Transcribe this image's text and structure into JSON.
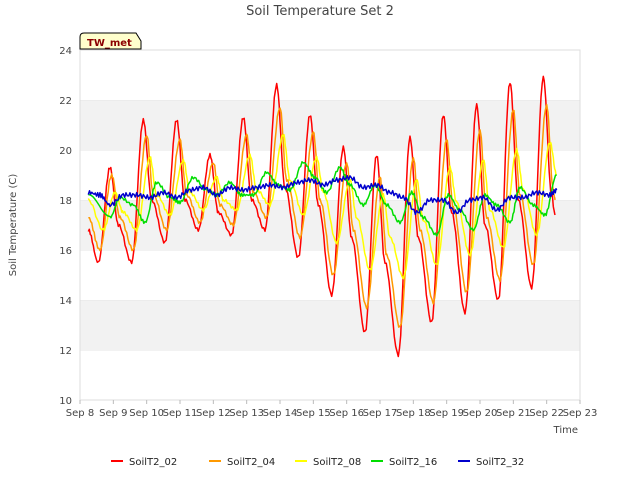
{
  "chart_data": {
    "type": "line",
    "title": "Soil Temperature Set 2",
    "xlabel": "Time",
    "ylabel": "Soil Temperature (C)",
    "ylim": [
      10,
      24
    ],
    "yticks": [
      10,
      12,
      14,
      16,
      18,
      20,
      22,
      24
    ],
    "xlim": [
      8,
      23
    ],
    "xtick_labels": [
      "Sep 8",
      "Sep 9",
      "Sep 10",
      "Sep 11",
      "Sep 12",
      "Sep 13",
      "Sep 14",
      "Sep 15",
      "Sep 16",
      "Sep 17",
      "Sep 18",
      "Sep 19",
      "Sep 20",
      "Sep 21",
      "Sep 22",
      "Sep 23"
    ],
    "grid": "horizontal bands",
    "legend_position": "bottom",
    "badge": "TW_met",
    "series": [
      {
        "name": "SoilT2_02",
        "color": "#ff0000",
        "x": [
          8.25,
          8.55,
          8.9,
          9.15,
          9.55,
          9.9,
          10.15,
          10.55,
          10.9,
          11.15,
          11.55,
          11.9,
          12.15,
          12.55,
          12.9,
          13.15,
          13.55,
          13.9,
          14.15,
          14.55,
          14.9,
          15.15,
          15.55,
          15.9,
          16.15,
          16.55,
          16.9,
          17.15,
          17.55,
          17.9,
          18.15,
          18.55,
          18.9,
          19.15,
          19.55,
          19.9,
          20.15,
          20.55,
          20.9,
          21.15,
          21.55,
          21.9,
          22.15,
          22.25
        ],
        "y": [
          16.8,
          15.5,
          19.3,
          17.0,
          15.5,
          21.2,
          18.0,
          16.3,
          21.2,
          18.0,
          16.8,
          19.8,
          17.5,
          16.6,
          21.3,
          18.0,
          16.8,
          22.6,
          18.5,
          15.7,
          21.4,
          17.8,
          14.2,
          20.1,
          16.5,
          12.7,
          19.8,
          15.5,
          11.8,
          20.5,
          16.5,
          13.1,
          21.4,
          17.5,
          13.5,
          21.8,
          17.0,
          14.0,
          22.7,
          18.0,
          14.5,
          22.9,
          18.2,
          17.4
        ]
      },
      {
        "name": "SoilT2_04",
        "color": "#ff9900",
        "x": [
          8.25,
          8.6,
          8.95,
          9.2,
          9.6,
          10.0,
          10.2,
          10.6,
          11.0,
          11.2,
          11.6,
          12.0,
          12.2,
          12.6,
          13.0,
          13.2,
          13.6,
          14.0,
          14.2,
          14.6,
          15.0,
          15.2,
          15.6,
          16.0,
          16.2,
          16.6,
          17.0,
          17.2,
          17.6,
          18.0,
          18.2,
          18.6,
          19.0,
          19.2,
          19.6,
          20.0,
          20.2,
          20.6,
          21.0,
          21.2,
          21.6,
          22.0,
          22.2,
          22.25
        ],
        "y": [
          17.3,
          16.0,
          19.0,
          17.3,
          16.0,
          20.6,
          18.2,
          16.8,
          20.4,
          18.2,
          17.1,
          19.5,
          17.8,
          17.0,
          20.6,
          18.3,
          17.3,
          21.7,
          18.8,
          16.5,
          20.7,
          18.0,
          15.0,
          19.5,
          16.8,
          13.7,
          18.9,
          15.8,
          12.9,
          19.7,
          16.8,
          13.9,
          20.4,
          17.7,
          14.3,
          20.8,
          17.3,
          14.8,
          21.6,
          18.2,
          15.4,
          21.8,
          18.4,
          18.0
        ]
      },
      {
        "name": "SoilT2_08",
        "color": "#ffff00",
        "x": [
          8.25,
          8.7,
          9.05,
          9.3,
          9.7,
          10.1,
          10.3,
          10.7,
          11.1,
          11.3,
          11.7,
          12.1,
          12.3,
          12.7,
          13.1,
          13.3,
          13.7,
          14.1,
          14.3,
          14.7,
          15.1,
          15.3,
          15.7,
          16.1,
          16.3,
          16.7,
          17.1,
          17.3,
          17.7,
          18.1,
          18.3,
          18.7,
          19.1,
          19.3,
          19.7,
          20.1,
          20.3,
          20.7,
          21.1,
          21.3,
          21.7,
          22.1,
          22.3
        ],
        "y": [
          18.0,
          16.8,
          18.3,
          17.5,
          16.8,
          19.7,
          18.2,
          17.4,
          19.6,
          18.3,
          17.6,
          18.9,
          18.0,
          17.6,
          19.8,
          18.4,
          17.8,
          20.6,
          18.8,
          17.4,
          19.7,
          18.3,
          16.3,
          18.8,
          17.3,
          15.2,
          18.2,
          16.5,
          14.9,
          18.8,
          17.2,
          15.4,
          19.3,
          17.9,
          15.8,
          19.6,
          17.6,
          16.1,
          20.0,
          18.4,
          16.6,
          20.3,
          19.0
        ]
      },
      {
        "name": "SoilT2_16",
        "color": "#00dd00",
        "x": [
          8.25,
          8.9,
          9.2,
          9.6,
          9.95,
          10.3,
          10.7,
          11.0,
          11.4,
          11.8,
          12.1,
          12.5,
          12.85,
          13.2,
          13.6,
          13.95,
          14.3,
          14.7,
          15.05,
          15.4,
          15.8,
          16.1,
          16.5,
          16.85,
          17.2,
          17.6,
          17.95,
          18.3,
          18.7,
          19.05,
          19.4,
          19.8,
          20.15,
          20.5,
          20.9,
          21.2,
          21.6,
          21.95,
          22.3
        ],
        "y": [
          18.2,
          17.3,
          18.1,
          17.8,
          17.1,
          18.7,
          18.1,
          17.9,
          18.9,
          18.4,
          18.2,
          18.7,
          18.2,
          18.2,
          19.1,
          18.6,
          18.4,
          19.5,
          18.9,
          18.3,
          19.3,
          18.6,
          17.8,
          18.6,
          17.8,
          17.1,
          18.3,
          17.3,
          16.6,
          18.2,
          17.6,
          16.8,
          18.2,
          17.8,
          17.1,
          18.5,
          17.8,
          17.4,
          19.0
        ]
      },
      {
        "name": "SoilT2_32",
        "color": "#0000cc",
        "x": [
          8.25,
          8.6,
          8.9,
          9.3,
          9.7,
          10.1,
          10.5,
          10.9,
          11.3,
          11.7,
          12.1,
          12.5,
          12.9,
          13.3,
          13.7,
          14.1,
          14.5,
          14.9,
          15.3,
          15.7,
          16.1,
          16.5,
          16.9,
          17.3,
          17.7,
          18.1,
          18.5,
          18.9,
          19.3,
          19.7,
          20.1,
          20.5,
          20.9,
          21.3,
          21.7,
          22.1,
          22.3
        ],
        "y": [
          18.3,
          18.2,
          17.8,
          18.2,
          18.2,
          18.1,
          18.3,
          18.1,
          18.4,
          18.5,
          18.2,
          18.5,
          18.4,
          18.5,
          18.6,
          18.5,
          18.7,
          18.8,
          18.6,
          18.8,
          18.9,
          18.5,
          18.6,
          18.3,
          18.1,
          17.5,
          18.0,
          18.0,
          17.5,
          18.0,
          18.1,
          17.6,
          18.1,
          18.1,
          18.3,
          18.2,
          18.4
        ]
      }
    ]
  }
}
